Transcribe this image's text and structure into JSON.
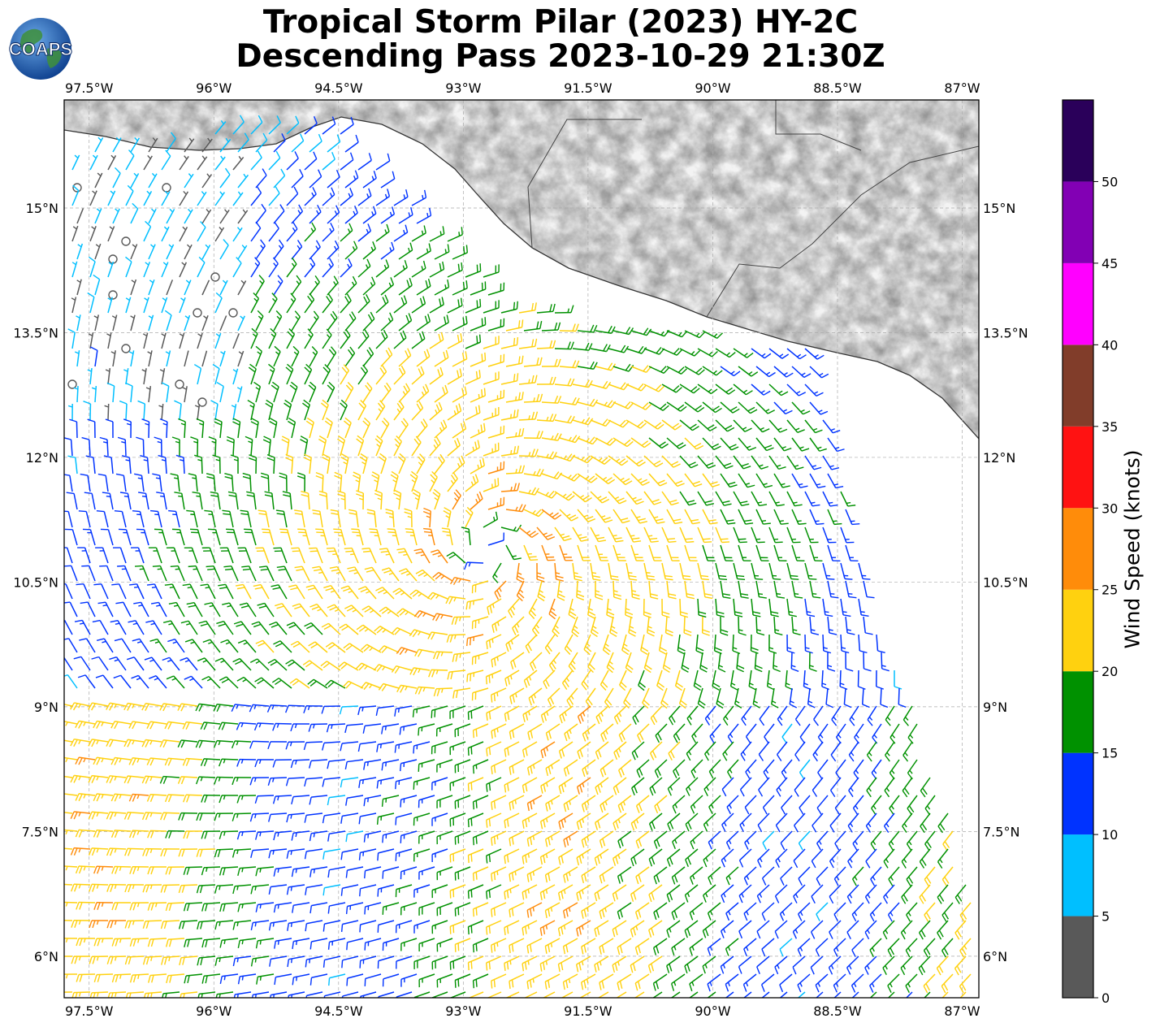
{
  "header": {
    "title_line1": "Tropical Storm Pilar (2023) HY-2C",
    "title_line2": "Descending Pass 2023-10-29 21:30Z",
    "logo_text": "COAPS"
  },
  "map": {
    "lon_range": [
      -97.8,
      -86.8
    ],
    "lat_range": [
      5.5,
      16.3
    ],
    "lon_ticks": [
      "97.5°W",
      "96°W",
      "94.5°W",
      "93°W",
      "91.5°W",
      "90°W",
      "88.5°W",
      "87°W"
    ],
    "lon_tick_values": [
      -97.5,
      -96,
      -94.5,
      -93,
      -91.5,
      -90,
      -88.5,
      -87
    ],
    "lat_ticks": [
      "15°N",
      "13.5°N",
      "12°N",
      "10.5°N",
      "9°N",
      "7.5°N",
      "6°N"
    ],
    "lat_tick_values": [
      15,
      13.5,
      12,
      10.5,
      9,
      7.5,
      6
    ],
    "storm_center": {
      "lon": -92.7,
      "lat": 10.9
    },
    "gridlines": true,
    "land_color": "grayscale terrain",
    "wind_barbs_units": "knots"
  },
  "colorbar": {
    "label": "Wind Speed (knots)",
    "tick_labels": [
      "0",
      "5",
      "10",
      "15",
      "20",
      "25",
      "30",
      "35",
      "40",
      "45",
      "50"
    ],
    "bins": [
      {
        "min": 0,
        "max": 5,
        "color": "#595959"
      },
      {
        "min": 5,
        "max": 10,
        "color": "#00bfff"
      },
      {
        "min": 10,
        "max": 15,
        "color": "#0033ff"
      },
      {
        "min": 15,
        "max": 20,
        "color": "#009100"
      },
      {
        "min": 20,
        "max": 25,
        "color": "#ffd10f"
      },
      {
        "min": 25,
        "max": 30,
        "color": "#ff8c0a"
      },
      {
        "min": 30,
        "max": 35,
        "color": "#ff1212"
      },
      {
        "min": 35,
        "max": 40,
        "color": "#813d2a"
      },
      {
        "min": 40,
        "max": 45,
        "color": "#ff00ff"
      },
      {
        "min": 45,
        "max": 50,
        "color": "#8200b4"
      },
      {
        "min": 50,
        "max": 55,
        "color": "#2a005a"
      }
    ]
  }
}
